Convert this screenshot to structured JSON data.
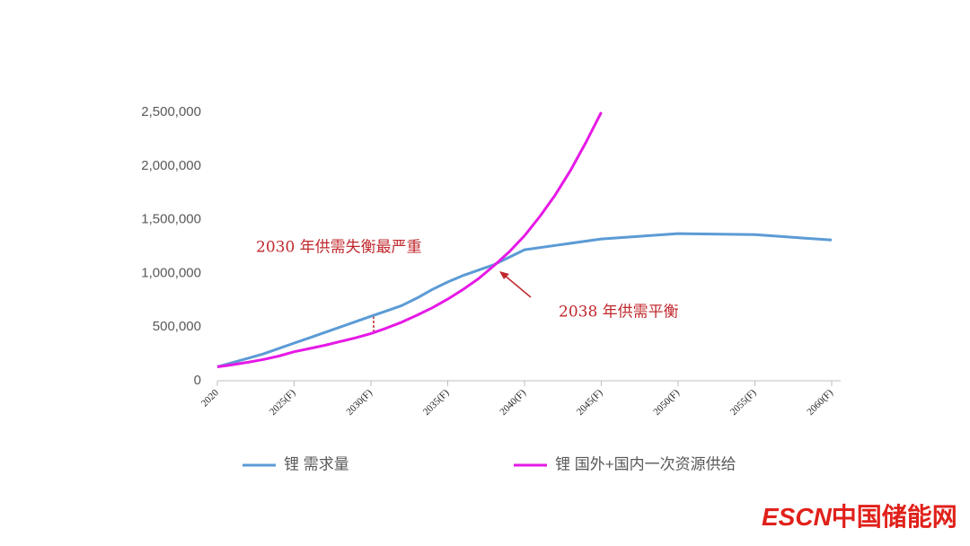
{
  "chart_data": {
    "type": "line",
    "xlim": [
      2020,
      2060
    ],
    "xticks": [
      {
        "value": 2020,
        "label": "2020"
      },
      {
        "value": 2025,
        "label": "2025(F)"
      },
      {
        "value": 2030,
        "label": "2030(F)"
      },
      {
        "value": 2035,
        "label": "2035(F)"
      },
      {
        "value": 2040,
        "label": "2040(F)"
      },
      {
        "value": 2045,
        "label": "2045(F)"
      },
      {
        "value": 2050,
        "label": "2050(F)"
      },
      {
        "value": 2055,
        "label": "2055(F)"
      },
      {
        "value": 2060,
        "label": "2060(F)"
      }
    ],
    "ylim": [
      0,
      2500000
    ],
    "yticks": [
      0,
      {
        "value": 500000,
        "label": "500,000"
      },
      {
        "value": 1000000,
        "label": "1,000,000"
      },
      {
        "value": 1500000,
        "label": "1,500,000"
      },
      {
        "value": 2000000,
        "label": "2,000,000"
      },
      {
        "value": 2500000,
        "label": "2,500,000"
      }
    ],
    "series": [
      {
        "name": "锂 需求量",
        "color": "#5b9bd5",
        "x": [
          2020,
          2021,
          2022,
          2023,
          2024,
          2025,
          2026,
          2027,
          2028,
          2029,
          2030,
          2031,
          2032,
          2033,
          2034,
          2035,
          2036,
          2037,
          2038,
          2039,
          2040,
          2042,
          2045,
          2050,
          2055,
          2060
        ],
        "values": [
          130000,
          170000,
          210000,
          250000,
          300000,
          350000,
          400000,
          450000,
          500000,
          550000,
          600000,
          650000,
          700000,
          770000,
          850000,
          920000,
          980000,
          1030000,
          1080000,
          1150000,
          1220000,
          1260000,
          1320000,
          1370000,
          1360000,
          1310000
        ]
      },
      {
        "name": "锂 国外+国内一次资源供给",
        "color": "#e619e6",
        "x": [
          2020,
          2021,
          2022,
          2023,
          2024,
          2025,
          2026,
          2027,
          2028,
          2029,
          2030,
          2031,
          2032,
          2033,
          2034,
          2035,
          2036,
          2037,
          2038,
          2039,
          2040,
          2041,
          2042,
          2043,
          2044,
          2045
        ],
        "values": [
          130000,
          150000,
          172000,
          198000,
          230000,
          270000,
          300000,
          330000,
          365000,
          400000,
          440000,
          490000,
          545000,
          610000,
          680000,
          760000,
          850000,
          950000,
          1070000,
          1200000,
          1350000,
          1530000,
          1730000,
          1960000,
          2220000,
          2500000
        ]
      }
    ],
    "annotations": [
      "2030 年供需失衡最严重",
      "2038 年供需平衡"
    ],
    "watermark": [
      "ESCN",
      "中国储能网"
    ]
  }
}
